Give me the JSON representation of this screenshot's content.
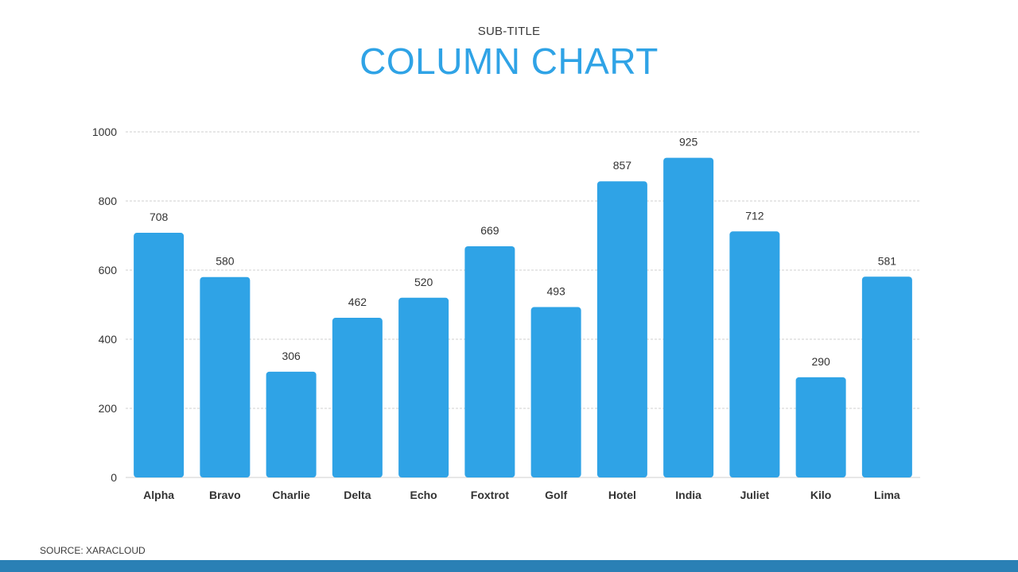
{
  "header": {
    "subtitle": "SUB-TITLE",
    "title": "COLUMN CHART"
  },
  "footer": {
    "source": "SOURCE: XARACLOUD"
  },
  "colors": {
    "bar": "#2fa3e6",
    "title": "#2fa3e6",
    "footer_bar": "#2a80b5",
    "grid": "#cfcfcf",
    "text": "#333333"
  },
  "chart_data": {
    "type": "bar",
    "title": "COLUMN CHART",
    "subtitle": "SUB-TITLE",
    "xlabel": "",
    "ylabel": "",
    "ylim": [
      0,
      1000
    ],
    "yticks": [
      0,
      200,
      400,
      600,
      800,
      1000
    ],
    "grid": true,
    "legend": "none",
    "data_labels": true,
    "categories": [
      "Alpha",
      "Bravo",
      "Charlie",
      "Delta",
      "Echo",
      "Foxtrot",
      "Golf",
      "Hotel",
      "India",
      "Juliet",
      "Kilo",
      "Lima"
    ],
    "values": [
      708,
      580,
      306,
      462,
      520,
      669,
      493,
      857,
      925,
      712,
      290,
      581
    ]
  }
}
